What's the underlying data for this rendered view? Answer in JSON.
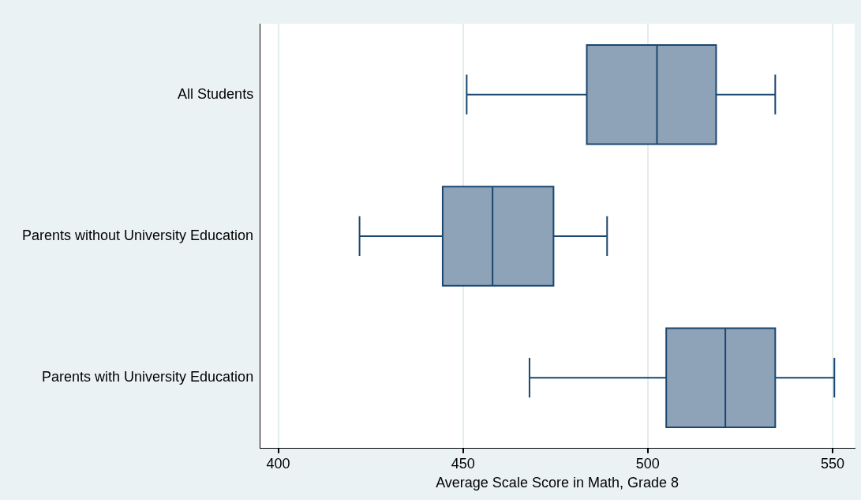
{
  "chart_data": {
    "type": "box",
    "orientation": "horizontal",
    "xlabel": "Average Scale Score in Math, Grade 8",
    "categories": [
      "All Students",
      "Parents without University Education",
      "Parents with University Education"
    ],
    "series": [
      {
        "color": "#8ea3b8",
        "boxes": [
          {
            "low": 451,
            "q1": 483.5,
            "median": 502.5,
            "q3": 518.5,
            "high": 534.5
          },
          {
            "low": 422,
            "q1": 444.5,
            "median": 458,
            "q3": 474.5,
            "high": 489
          },
          {
            "low": 468,
            "q1": 505,
            "median": 521,
            "q3": 534.5,
            "high": 550.5
          }
        ]
      }
    ],
    "xlim": [
      395,
      556
    ],
    "xticks": [
      400,
      450,
      500,
      550
    ],
    "grid": "x",
    "legend": false
  }
}
